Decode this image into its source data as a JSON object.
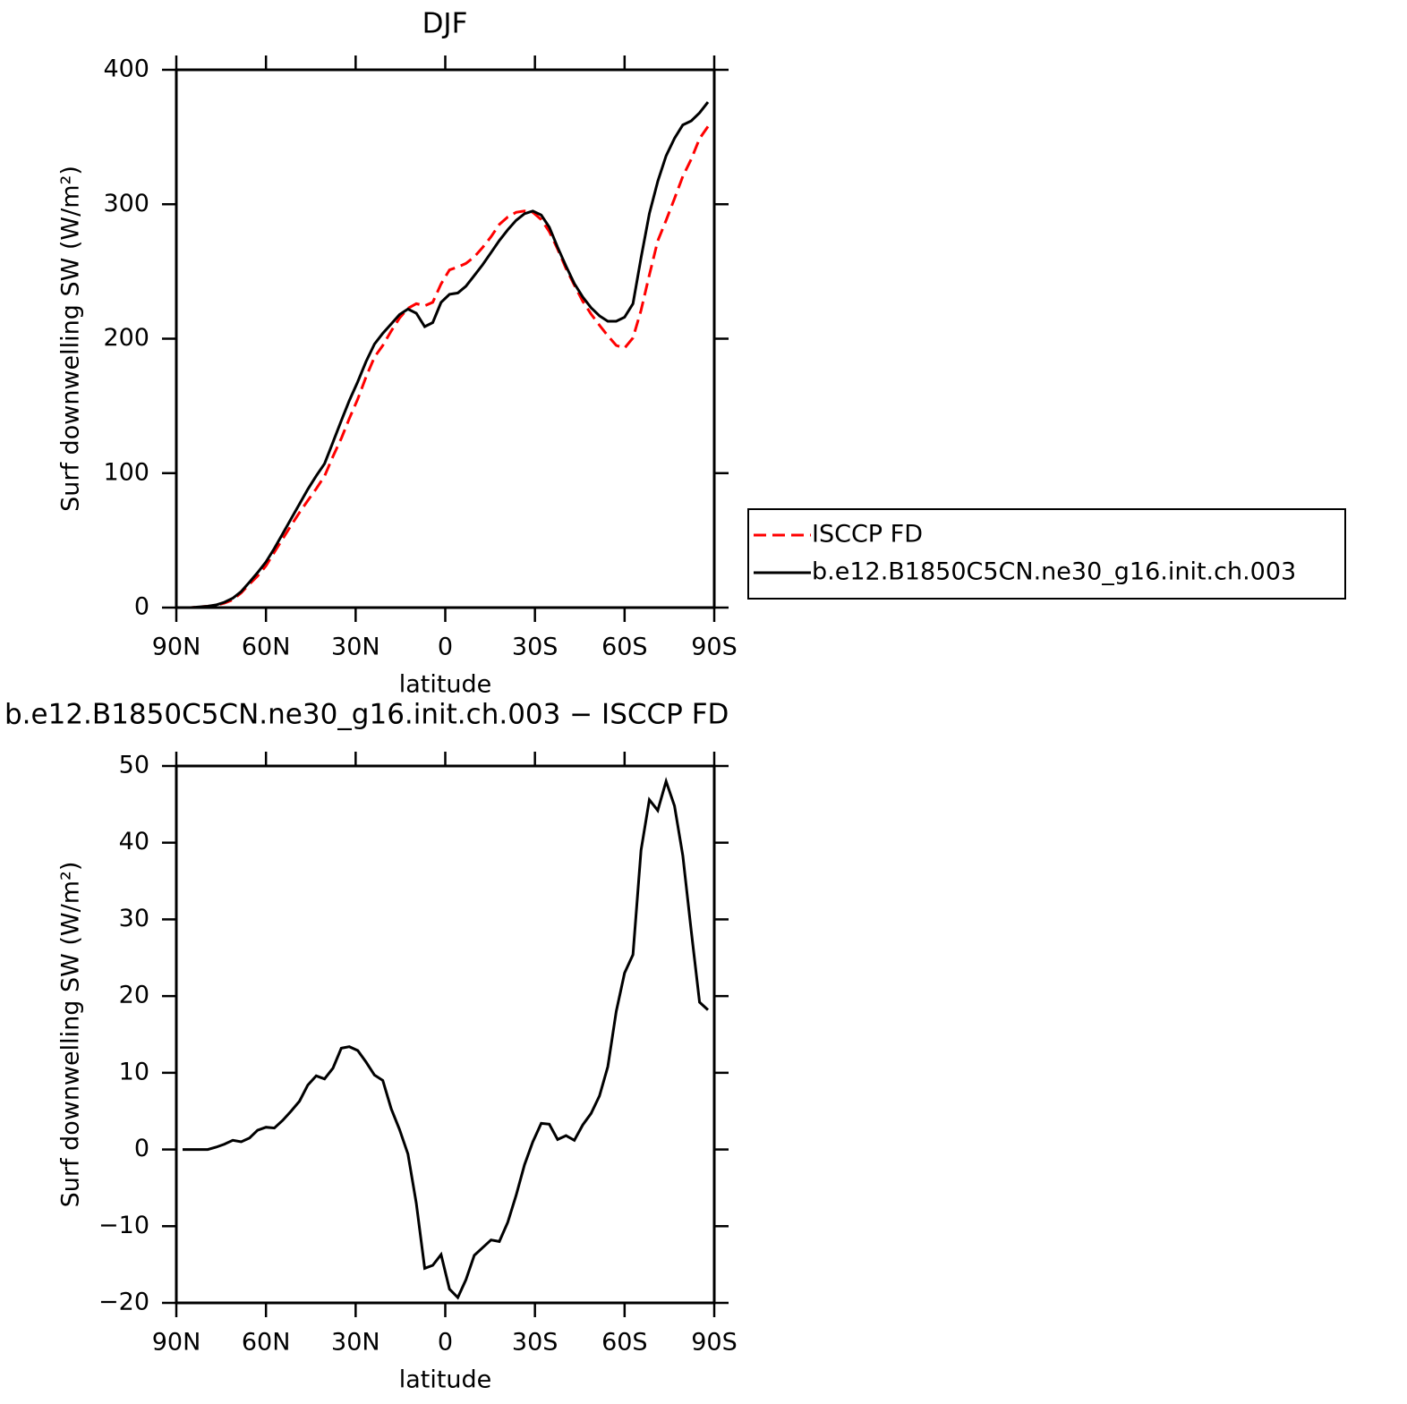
{
  "chart_data": [
    {
      "type": "line",
      "title": "DJF",
      "xlabel": "latitude",
      "ylabel": "Surf downwelling SW (W/m²)",
      "x": [
        87.9,
        85.1,
        82.3,
        79.5,
        76.7,
        73.9,
        71.1,
        68.3,
        65.5,
        62.8,
        60.0,
        57.2,
        54.4,
        51.6,
        48.8,
        46.0,
        43.2,
        40.4,
        37.6,
        34.8,
        32.1,
        29.3,
        26.5,
        23.7,
        20.9,
        18.1,
        15.3,
        12.5,
        9.7,
        6.9,
        4.2,
        1.4,
        -1.4,
        -4.2,
        -6.9,
        -9.7,
        -12.5,
        -15.3,
        -18.1,
        -20.9,
        -23.7,
        -26.5,
        -29.3,
        -32.1,
        -34.8,
        -37.6,
        -40.4,
        -43.2,
        -46.0,
        -48.8,
        -51.6,
        -54.4,
        -57.2,
        -60.0,
        -62.8,
        -65.5,
        -68.3,
        -71.1,
        -73.9,
        -76.7,
        -79.5,
        -82.3,
        -85.1,
        -87.9
      ],
      "series": [
        {
          "name": "ISCCP FD",
          "color": "#ff0000",
          "dash": "dashed",
          "values": [
            0,
            0,
            0.5,
            1,
            1.7,
            3.3,
            5.8,
            11,
            17.5,
            23.5,
            31.1,
            41.2,
            51.2,
            61,
            70.7,
            79.6,
            88.4,
            97.8,
            112.4,
            125.8,
            140.6,
            155.1,
            171.6,
            186.3,
            195,
            205.7,
            215.4,
            222.6,
            226,
            224.5,
            227.1,
            240.7,
            251.2,
            253.3,
            256,
            260.8,
            267.8,
            275.8,
            285,
            290.5,
            294,
            295,
            294,
            288.6,
            279.7,
            266.7,
            252.2,
            239.8,
            227.8,
            218.3,
            210,
            202.2,
            195,
            193,
            200.6,
            221,
            247.4,
            272.8,
            288,
            304.2,
            320.7,
            333.5,
            348.8,
            357.8
          ]
        },
        {
          "name": "b.e12.B1850C5CN.ne30_g16.init.ch.003",
          "color": "#000000",
          "values": [
            0,
            0,
            0.5,
            1,
            2,
            4,
            7,
            12,
            19,
            26,
            34,
            44,
            55,
            66,
            77,
            88,
            98,
            107,
            123,
            139,
            154,
            168,
            183,
            196,
            204,
            211,
            218,
            222,
            219,
            209,
            212,
            227,
            233,
            234,
            239,
            247,
            255,
            264,
            273,
            281,
            288,
            293,
            295,
            292,
            283,
            268,
            254,
            241,
            231,
            223,
            217,
            213,
            213,
            216,
            226,
            260,
            293,
            317,
            336,
            349,
            359,
            362,
            368,
            376
          ]
        }
      ],
      "xlim": [
        90,
        -90
      ],
      "xticks": [
        {
          "value": 90,
          "label": "90N"
        },
        {
          "value": 60,
          "label": "60N"
        },
        {
          "value": 30,
          "label": "30N"
        },
        0,
        {
          "value": -30,
          "label": "30S"
        },
        {
          "value": -60,
          "label": "60S"
        },
        {
          "value": -90,
          "label": "90S"
        }
      ],
      "ylim": [
        0,
        400
      ],
      "yticks": [
        0,
        100,
        200,
        300,
        400
      ],
      "legend": "right"
    },
    {
      "type": "line",
      "title": "b.e12.B1850C5CN.ne30_g16.init.ch.003 − ISCCP FD",
      "xlabel": "latitude",
      "ylabel": "Surf downwelling SW (W/m²)",
      "x": [
        87.9,
        85.1,
        82.3,
        79.5,
        76.7,
        73.9,
        71.1,
        68.3,
        65.5,
        62.8,
        60.0,
        57.2,
        54.4,
        51.6,
        48.8,
        46.0,
        43.2,
        40.4,
        37.6,
        34.8,
        32.1,
        29.3,
        26.5,
        23.7,
        20.9,
        18.1,
        15.3,
        12.5,
        9.7,
        6.9,
        4.2,
        1.4,
        -1.4,
        -4.2,
        -6.9,
        -9.7,
        -12.5,
        -15.3,
        -18.1,
        -20.9,
        -23.7,
        -26.5,
        -29.3,
        -32.1,
        -34.8,
        -37.6,
        -40.4,
        -43.2,
        -46.0,
        -48.8,
        -51.6,
        -54.4,
        -57.2,
        -60.0,
        -62.8,
        -65.5,
        -68.3,
        -71.1,
        -73.9,
        -76.7,
        -79.5,
        -82.3,
        -85.1,
        -87.9
      ],
      "color": "#000000",
      "values": [
        0,
        0,
        0,
        0,
        0.3,
        0.7,
        1.2,
        1.0,
        1.5,
        2.5,
        2.9,
        2.8,
        3.8,
        5.0,
        6.3,
        8.4,
        9.6,
        9.2,
        10.6,
        13.2,
        13.4,
        12.9,
        11.4,
        9.7,
        9.0,
        5.3,
        2.6,
        -0.6,
        -7,
        -15.5,
        -15.1,
        -13.7,
        -18.2,
        -19.3,
        -17,
        -13.8,
        -12.8,
        -11.8,
        -12,
        -9.5,
        -6,
        -2,
        1,
        3.4,
        3.3,
        1.3,
        1.8,
        1.2,
        3.2,
        4.7,
        7,
        10.8,
        18,
        23,
        25.4,
        39,
        45.6,
        44.2,
        48,
        44.8,
        38.3,
        28.5,
        19.2,
        18.2
      ],
      "xlim": [
        90,
        -90
      ],
      "xticks": [
        {
          "value": 90,
          "label": "90N"
        },
        {
          "value": 60,
          "label": "60N"
        },
        {
          "value": 30,
          "label": "30N"
        },
        0,
        {
          "value": -30,
          "label": "30S"
        },
        {
          "value": -60,
          "label": "60S"
        },
        {
          "value": -90,
          "label": "90S"
        }
      ],
      "ylim": [
        -20,
        50
      ],
      "yticks": [
        {
          "value": -20,
          "label": "−20"
        },
        {
          "value": -10,
          "label": "−10"
        },
        0,
        10,
        20,
        30,
        40,
        50
      ]
    }
  ]
}
